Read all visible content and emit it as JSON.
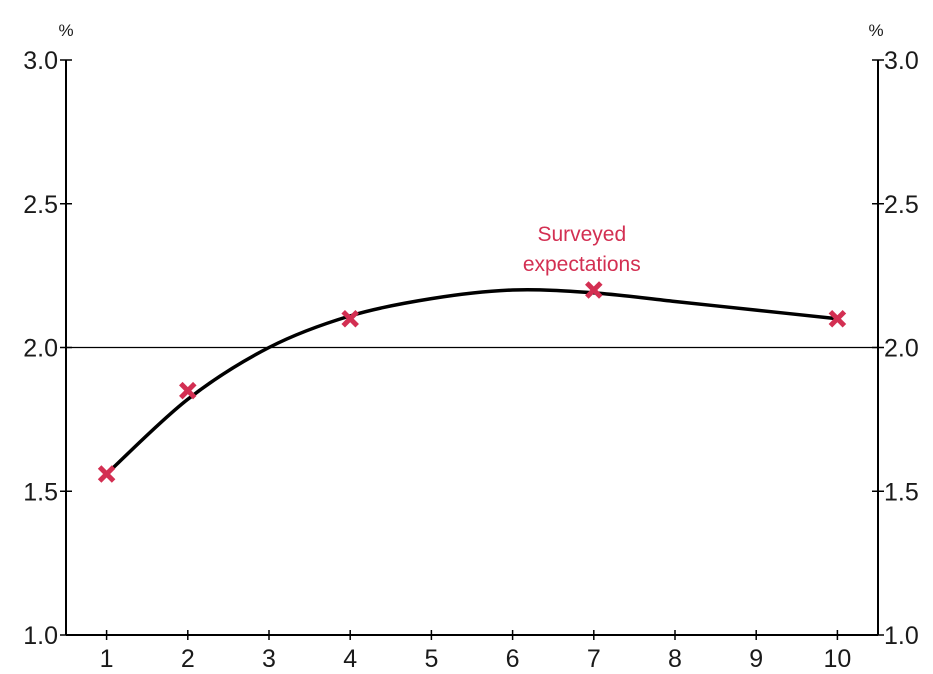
{
  "chart_data": {
    "type": "line",
    "title": "",
    "xlabel": "",
    "ylabel": "%",
    "y_unit_left": "%",
    "y_unit_right": "%",
    "xlim": [
      0.5,
      10.5
    ],
    "ylim": [
      1.0,
      3.0
    ],
    "x_ticks": [
      1,
      2,
      3,
      4,
      5,
      6,
      7,
      8,
      9,
      10
    ],
    "y_ticks": [
      "1.0",
      "1.5",
      "2.0",
      "2.5",
      "3.0"
    ],
    "reference_line": 2.0,
    "grid": false,
    "series": [
      {
        "kind": "fitted-curve",
        "color": "#000000",
        "x": [
          1,
          2,
          3,
          4,
          5,
          6,
          7,
          8,
          9,
          10
        ],
        "y": [
          1.56,
          1.82,
          2.0,
          2.11,
          2.17,
          2.2,
          2.19,
          2.16,
          2.13,
          2.1
        ]
      },
      {
        "kind": "markers",
        "marker": "x",
        "color": "#d32f52",
        "x": [
          1,
          2,
          4,
          7,
          10
        ],
        "y": [
          1.56,
          1.85,
          2.1,
          2.2,
          2.1
        ]
      }
    ],
    "annotations": [
      {
        "lines": [
          "Surveyed",
          "expectations"
        ],
        "color": "#d32f52",
        "anchor_x": 7.0,
        "anchor_y": 2.2
      }
    ]
  }
}
